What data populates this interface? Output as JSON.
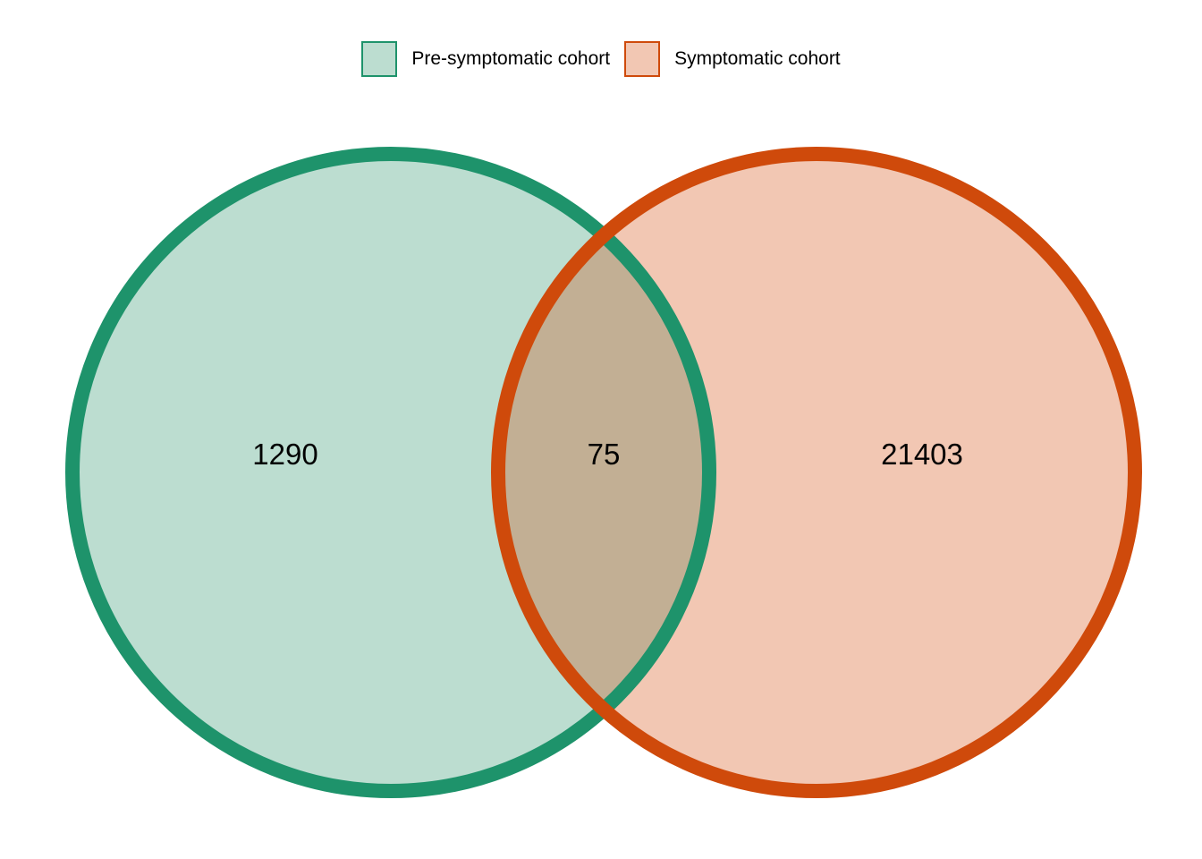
{
  "sets": [
    {
      "name": "Pre-symptomatic cohort",
      "fill": "#bcddd0",
      "stroke": "#1e936b"
    },
    {
      "name": "Symptomatic cohort",
      "fill": "#f2c7b3",
      "stroke": "#cf4a0b"
    }
  ],
  "regions": {
    "only_a": "1290",
    "overlap": "75",
    "only_b": "21403"
  },
  "overlap_fill": "#c2af94"
}
